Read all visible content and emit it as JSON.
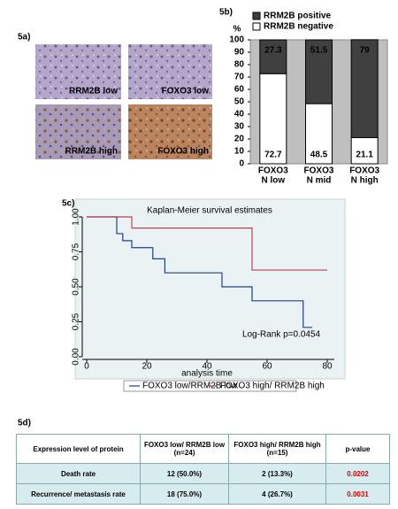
{
  "panels": [
    "5a)",
    "5b)",
    "5c)",
    "5d)"
  ],
  "images": [
    "RRM2B low",
    "FOXO3 low",
    "RRM2B high",
    "FOXO3 high"
  ],
  "chart_data": [
    {
      "type": "stacked_bar",
      "y_label": "%",
      "categories": [
        [
          "FOXO3",
          "N low"
        ],
        [
          "FOXO3",
          "N mid"
        ],
        [
          "FOXO3",
          "N high"
        ]
      ],
      "series": [
        {
          "name": "RRM2B negative",
          "color": "#ffffff",
          "values": [
            72.7,
            48.5,
            21.1
          ]
        },
        {
          "name": "RRM2B positive",
          "color": "#404040",
          "values": [
            27.3,
            51.5,
            79
          ]
        }
      ],
      "ylim": [
        0,
        100
      ],
      "yticks": [
        0,
        10,
        20,
        30,
        40,
        50,
        60,
        70,
        80,
        90,
        100
      ]
    },
    {
      "type": "step",
      "title": "Kaplan-Meier survival estimates",
      "x_label": "analysis time",
      "annotation": "Log-Rank p=0.0454",
      "xlim": [
        0,
        80
      ],
      "xticks": [
        0,
        20,
        40,
        60,
        80
      ],
      "ylim": [
        0,
        1
      ],
      "yticks": [
        {
          "value": 0,
          "label": "0.00"
        },
        {
          "value": 0.25,
          "label": "0.25"
        },
        {
          "value": 0.5,
          "label": "0.50"
        },
        {
          "value": 0.75,
          "label": "0.75"
        },
        {
          "value": 1,
          "label": "1.00"
        }
      ],
      "series": [
        {
          "name": "FOXO3 low/RRM2B low",
          "color": "#1f3f8f",
          "x": [
            0,
            10,
            10,
            12,
            12,
            15,
            15,
            22,
            22,
            26,
            26,
            45,
            45,
            55,
            55,
            72,
            72,
            75
          ],
          "values": [
            1,
            1,
            0.88,
            0.88,
            0.83,
            0.83,
            0.78,
            0.78,
            0.7,
            0.7,
            0.6,
            0.6,
            0.5,
            0.5,
            0.4,
            0.4,
            0.21,
            0.21
          ]
        },
        {
          "name": "FOXO3 high/ RRM2B high",
          "color": "#b5454d",
          "x": [
            0,
            15,
            15,
            55,
            55,
            80
          ],
          "values": [
            1,
            1,
            0.92,
            0.92,
            0.62,
            0.62
          ]
        }
      ]
    }
  ],
  "table": {
    "header": [
      "Expression level of protein",
      "FOXO3 low/ RRM2B low (n=24)",
      "FOXO3 high/ RRM2B high (n=15)",
      "p-value"
    ],
    "rows": [
      [
        "Death rate",
        "12 (50.0%)",
        "2 (13.3%)",
        "0.0202"
      ],
      [
        "Recurrence/ metastasis rate",
        "18 (75.0%)",
        "4 (26.7%)",
        "0.0031"
      ]
    ]
  }
}
